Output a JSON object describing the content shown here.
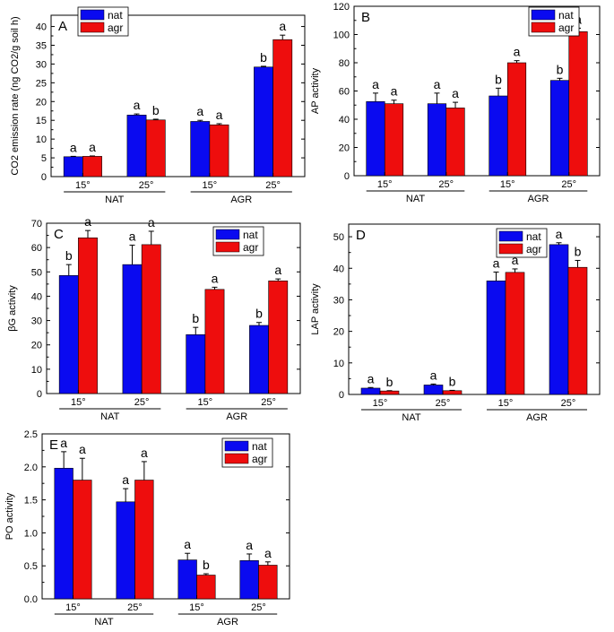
{
  "colors": {
    "nat": "#0a0af0",
    "agr": "#ee0d0d"
  },
  "chart_data": [
    {
      "panel": "A",
      "type": "bar",
      "ylabel": "CO2  emission rate (ng CO2/g soil h)",
      "ylim": [
        0,
        43
      ],
      "yticks": [
        0,
        5,
        10,
        15,
        20,
        25,
        30,
        35,
        40
      ],
      "categories": [
        "15°",
        "25°",
        "15°",
        "25°"
      ],
      "groups": [
        "NAT",
        "AGR"
      ],
      "legend": [
        "nat",
        "agr"
      ],
      "series": [
        {
          "name": "nat",
          "values": [
            5.3,
            16.4,
            14.7,
            29.2
          ],
          "errors": [
            0.1,
            0.3,
            0.3,
            0.2
          ],
          "letters": [
            "a",
            "a",
            "a",
            "b"
          ]
        },
        {
          "name": "agr",
          "values": [
            5.4,
            15.1,
            13.8,
            36.5
          ],
          "errors": [
            0.1,
            0.2,
            0.3,
            1.2
          ],
          "letters": [
            "a",
            "b",
            "a",
            "a"
          ]
        }
      ]
    },
    {
      "panel": "B",
      "type": "bar",
      "ylabel": "AP activity",
      "ylim": [
        0,
        120
      ],
      "yticks": [
        0,
        20,
        40,
        60,
        80,
        100,
        120
      ],
      "categories": [
        "15°",
        "25°",
        "15°",
        "25°"
      ],
      "groups": [
        "NAT",
        "AGR"
      ],
      "legend": [
        "nat",
        "agr"
      ],
      "series": [
        {
          "name": "nat",
          "values": [
            52.5,
            51,
            56.5,
            67.5
          ],
          "errors": [
            6,
            7.5,
            5.5,
            1.5
          ],
          "letters": [
            "a",
            "a",
            "b",
            "b"
          ]
        },
        {
          "name": "agr",
          "values": [
            51,
            48,
            80,
            102
          ],
          "errors": [
            2.5,
            4,
            1.5,
            2.5
          ],
          "letters": [
            "a",
            "a",
            "a",
            "a"
          ]
        }
      ]
    },
    {
      "panel": "C",
      "type": "bar",
      "ylabel": "βG activity",
      "ylim": [
        0,
        70
      ],
      "yticks": [
        0,
        10,
        20,
        30,
        40,
        50,
        60,
        70
      ],
      "categories": [
        "15°",
        "25°",
        "15°",
        "25°"
      ],
      "groups": [
        "NAT",
        "AGR"
      ],
      "legend": [
        "nat",
        "agr"
      ],
      "series": [
        {
          "name": "nat",
          "values": [
            48.5,
            53,
            24.2,
            28
          ],
          "errors": [
            4.5,
            8,
            3,
            1.2
          ],
          "letters": [
            "b",
            "a",
            "b",
            "b"
          ]
        },
        {
          "name": "agr",
          "values": [
            64,
            61.2,
            42.8,
            46.3
          ],
          "errors": [
            3,
            5.5,
            0.9,
            0.8
          ],
          "letters": [
            "a",
            "a",
            "a",
            "a"
          ]
        }
      ]
    },
    {
      "panel": "D",
      "type": "bar",
      "ylabel": "LAP activity",
      "ylim": [
        0,
        54
      ],
      "yticks": [
        0,
        10,
        20,
        30,
        40,
        50
      ],
      "categories": [
        "15°",
        "25°",
        "15°",
        "25°"
      ],
      "groups": [
        "NAT",
        "AGR"
      ],
      "legend": [
        "nat",
        "agr"
      ],
      "series": [
        {
          "name": "nat",
          "values": [
            2,
            3,
            36,
            47.5
          ],
          "errors": [
            0.2,
            0.3,
            2.8,
            0.6
          ],
          "letters": [
            "a",
            "a",
            "a",
            "a"
          ]
        },
        {
          "name": "agr",
          "values": [
            1.1,
            1.2,
            38.7,
            40.3
          ],
          "errors": [
            0.1,
            0.1,
            1.1,
            2.2
          ],
          "letters": [
            "b",
            "b",
            "a",
            "b"
          ]
        }
      ]
    },
    {
      "panel": "E",
      "type": "bar",
      "ylabel": "PO activity",
      "ylim": [
        0,
        2.5
      ],
      "yticks": [
        "0.0",
        "0.5",
        "1.0",
        "1.5",
        "2.0",
        "2.5"
      ],
      "categories": [
        "15°",
        "25°",
        "15°",
        "25°"
      ],
      "groups": [
        "NAT",
        "AGR"
      ],
      "legend": [
        "nat",
        "agr"
      ],
      "series": [
        {
          "name": "nat",
          "values": [
            1.98,
            1.47,
            0.59,
            0.58
          ],
          "errors": [
            0.25,
            0.2,
            0.1,
            0.1
          ],
          "letters": [
            "a",
            "a",
            "a",
            "a"
          ]
        },
        {
          "name": "agr",
          "values": [
            1.8,
            1.8,
            0.36,
            0.51
          ],
          "errors": [
            0.33,
            0.28,
            0.02,
            0.05
          ],
          "letters": [
            "a",
            "a",
            "b",
            "a"
          ]
        }
      ]
    }
  ]
}
